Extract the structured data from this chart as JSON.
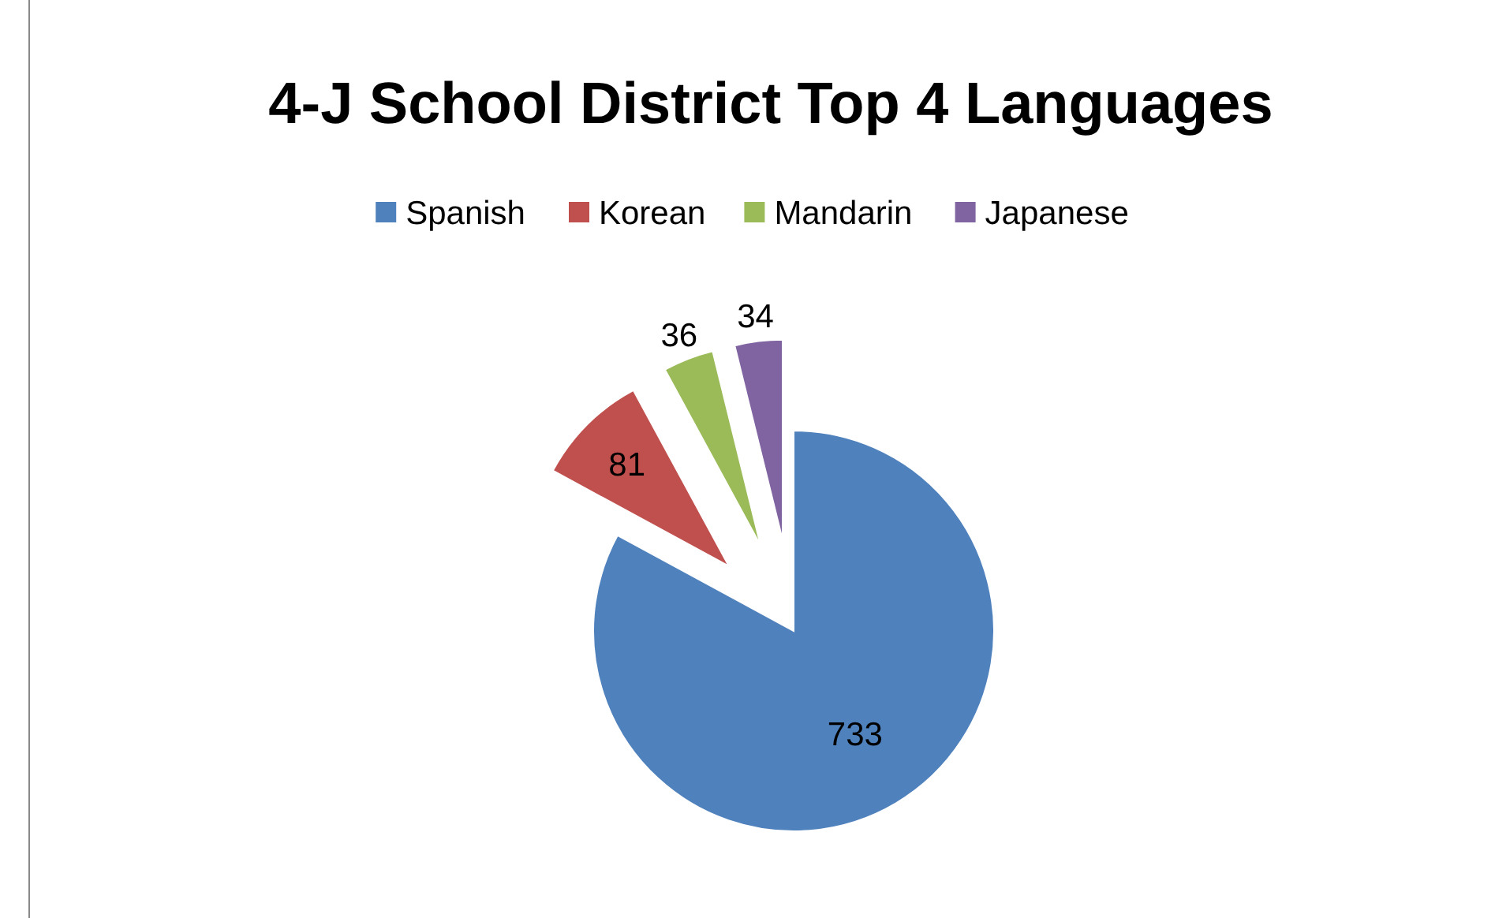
{
  "chart_data": {
    "type": "pie",
    "title": "4-J School District Top 4 Languages",
    "categories": [
      "Spanish",
      "Korean",
      "Mandarin",
      "Japanese"
    ],
    "values": [
      733,
      81,
      36,
      34
    ],
    "colors": [
      "#4f81bd",
      "#c0504d",
      "#9bbb59",
      "#8064a2"
    ],
    "data_labels": true,
    "legend": "top"
  }
}
